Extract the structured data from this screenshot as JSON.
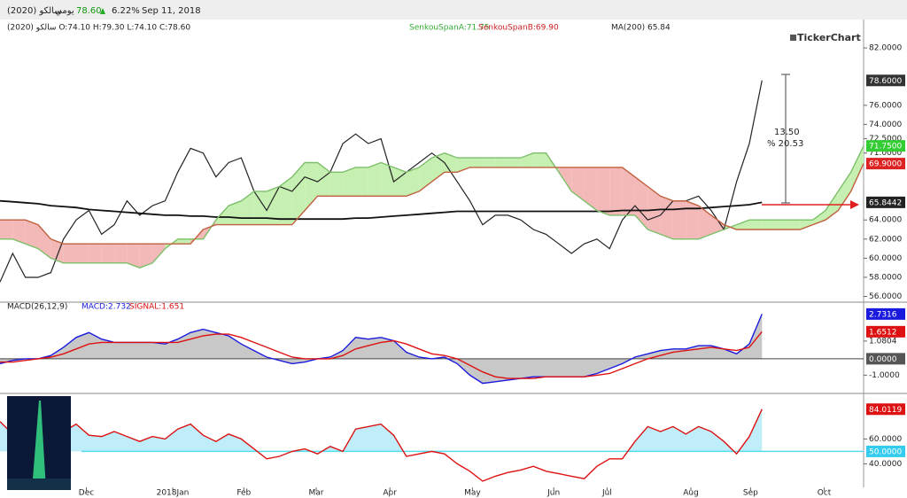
{
  "chart_data": [
    {
      "type": "line",
      "title": "سالكو (2020)",
      "interval": "يومي",
      "last": "78.60",
      "change": "6.22%",
      "date": "Sep 11, 2018",
      "ohlc": "سالكو (2020)  O:74.10 H:79.30 L:74.10 C:78.60",
      "legend": [
        "SenkouSpanA:71.75",
        "SenkouSpanB:69.90",
        "MA(200)  65.84"
      ],
      "logo": "TickerChart",
      "annotations": [
        "13.50",
        "% 20.53"
      ],
      "xlim": [
        0,
        68
      ],
      "xticks": [
        {
          "value": 6.8,
          "label": "Dec"
        },
        {
          "value": 13.6,
          "label": "2018Jan"
        },
        {
          "value": 19.2,
          "label": "Feb"
        },
        {
          "value": 24.9,
          "label": "Mar"
        },
        {
          "value": 30.7,
          "label": "Apr"
        },
        {
          "value": 37.2,
          "label": "May"
        },
        {
          "value": 43.6,
          "label": "Jun"
        },
        {
          "value": 47.8,
          "label": "Jul"
        },
        {
          "value": 54.4,
          "label": "Aug"
        },
        {
          "value": 59.1,
          "label": "Sep"
        },
        {
          "value": 64.9,
          "label": "Oct"
        }
      ],
      "ylim": [
        55.4,
        83.4
      ],
      "yticks": [
        {
          "value": 56,
          "label": "56.0000"
        },
        {
          "value": 58,
          "label": "58.0000"
        },
        {
          "value": 60,
          "label": "60.0000"
        },
        {
          "value": 62,
          "label": "62.0000"
        },
        {
          "value": 64,
          "label": "64.0000"
        },
        {
          "value": 71,
          "label": "71.0000"
        },
        {
          "value": 72.5,
          "label": "72.5000"
        },
        {
          "value": 74,
          "label": "74.0000"
        },
        {
          "value": 76,
          "label": "76.0000"
        },
        {
          "value": 82,
          "label": "82.0000"
        }
      ],
      "series": [
        {
          "name": "Close",
          "color": "#222222",
          "values": [
            57.5,
            60.5,
            58,
            58,
            58.5,
            62,
            64,
            65,
            62.5,
            63.5,
            66,
            64.5,
            65.5,
            66,
            69,
            71.5,
            71,
            68.5,
            70,
            70.5,
            67,
            65,
            67.5,
            67,
            68.5,
            68,
            69,
            72,
            73,
            72,
            72.5,
            68,
            69,
            70,
            71,
            70,
            68,
            66,
            63.5,
            64.5,
            64.5,
            64,
            63,
            62.5,
            61.5,
            60.5,
            61.5,
            62,
            61,
            64,
            65.5,
            64,
            64.5,
            66,
            66,
            66.5,
            65,
            63,
            68,
            72,
            78.6
          ]
        },
        {
          "name": "MA(200)",
          "color": "#111111",
          "values": [
            66.0,
            65.9,
            65.8,
            65.7,
            65.5,
            65.4,
            65.3,
            65.1,
            65.0,
            64.9,
            64.8,
            64.7,
            64.6,
            64.5,
            64.5,
            64.4,
            64.4,
            64.3,
            64.3,
            64.2,
            64.2,
            64.2,
            64.1,
            64.1,
            64.1,
            64.1,
            64.1,
            64.1,
            64.2,
            64.2,
            64.3,
            64.4,
            64.5,
            64.6,
            64.7,
            64.8,
            64.9,
            64.9,
            64.9,
            64.9,
            64.9,
            64.9,
            64.9,
            64.9,
            64.9,
            64.9,
            64.9,
            64.9,
            64.9,
            65.0,
            65.0,
            65.0,
            65.1,
            65.1,
            65.2,
            65.2,
            65.3,
            65.4,
            65.5,
            65.6,
            65.8442
          ]
        },
        {
          "name": "SenkouSpanA",
          "color": "#7cc06a",
          "values": [
            62,
            62,
            61.5,
            61,
            60,
            59.5,
            59.5,
            59.5,
            59.5,
            59.5,
            59.5,
            59,
            59.5,
            61,
            62,
            62,
            62,
            64,
            65.5,
            66,
            67,
            67,
            67.5,
            68.5,
            70,
            70,
            69,
            69,
            69.5,
            69.5,
            70,
            69.5,
            69,
            69.5,
            70.5,
            71,
            70.5,
            70.5,
            70.5,
            70.5,
            70.5,
            70.5,
            71,
            71,
            69,
            67,
            66,
            65,
            64.5,
            64.5,
            64.5,
            63,
            62.5,
            62,
            62,
            62,
            62.5,
            63,
            63.5,
            64,
            64,
            64,
            64,
            64,
            64,
            65,
            67,
            69,
            71.75
          ]
        },
        {
          "name": "SenkouSpanB",
          "color": "#c0603c",
          "values": [
            64,
            64,
            64,
            63.5,
            62,
            61.5,
            61.5,
            61.5,
            61.5,
            61.5,
            61.5,
            61.5,
            61.5,
            61.5,
            61.5,
            61.5,
            63,
            63.5,
            63.5,
            63.5,
            63.5,
            63.5,
            63.5,
            63.5,
            65,
            66.5,
            66.5,
            66.5,
            66.5,
            66.5,
            66.5,
            66.5,
            66.5,
            67,
            68,
            69,
            69,
            69.5,
            69.5,
            69.5,
            69.5,
            69.5,
            69.5,
            69.5,
            69.5,
            69.5,
            69.5,
            69.5,
            69.5,
            69.5,
            68.5,
            67.5,
            66.5,
            66,
            66,
            65.5,
            64.5,
            63.5,
            63,
            63,
            63,
            63,
            63,
            63,
            63.5,
            64,
            65,
            67,
            69.9
          ]
        }
      ],
      "cloud_colors": [
        "#c6efb2",
        "#f3b9b9"
      ],
      "tags": [
        {
          "value": 78.6,
          "label": "78.6000",
          "color": "#333333"
        },
        {
          "value": 71.75,
          "label": "71.7500",
          "color": "#33cc33"
        },
        {
          "value": 69.9,
          "label": "69.9000",
          "color": "#dd2222"
        },
        {
          "value": 65.8442,
          "label": "65.8442",
          "color": "#222222"
        }
      ]
    },
    {
      "type": "line",
      "title": "MACD(26,12,9)",
      "legend": [
        "MACD:2.732",
        "SIGNAL:1.651"
      ],
      "xlim": [
        0,
        68
      ],
      "ylim": [
        -1.9,
        3.4
      ],
      "yticks": [
        {
          "value": -1,
          "label": "-1.0000"
        },
        {
          "value": 1.0804,
          "label": "1.0804"
        }
      ],
      "series": [
        {
          "name": "MACD",
          "color": "#1a1adf",
          "values": [
            -0.3,
            -0.1,
            0.0,
            0.0,
            0.2,
            0.7,
            1.3,
            1.6,
            1.2,
            1.0,
            1.0,
            1.0,
            1.0,
            0.9,
            1.2,
            1.6,
            1.8,
            1.6,
            1.4,
            0.9,
            0.5,
            0.1,
            -0.1,
            -0.3,
            -0.2,
            0.0,
            0.1,
            0.5,
            1.3,
            1.2,
            1.3,
            1.1,
            0.4,
            0.1,
            0.0,
            0.1,
            -0.3,
            -1.0,
            -1.5,
            -1.4,
            -1.3,
            -1.2,
            -1.1,
            -1.1,
            -1.1,
            -1.1,
            -1.1,
            -0.9,
            -0.6,
            -0.3,
            0.1,
            0.3,
            0.5,
            0.6,
            0.6,
            0.8,
            0.8,
            0.6,
            0.3,
            0.9,
            2.732
          ]
        },
        {
          "name": "SIGNAL",
          "color": "#dd1111",
          "values": [
            -0.2,
            -0.2,
            -0.1,
            0.0,
            0.1,
            0.3,
            0.6,
            0.9,
            1.0,
            1.0,
            1.0,
            1.0,
            1.0,
            1.0,
            1.0,
            1.2,
            1.4,
            1.5,
            1.5,
            1.3,
            1.0,
            0.7,
            0.4,
            0.1,
            0.0,
            0.0,
            0.0,
            0.2,
            0.6,
            0.8,
            1.0,
            1.1,
            0.9,
            0.6,
            0.3,
            0.2,
            0.0,
            -0.4,
            -0.8,
            -1.1,
            -1.2,
            -1.2,
            -1.2,
            -1.1,
            -1.1,
            -1.1,
            -1.1,
            -1.0,
            -0.9,
            -0.6,
            -0.3,
            0.0,
            0.2,
            0.4,
            0.5,
            0.6,
            0.7,
            0.6,
            0.5,
            0.7,
            1.651
          ]
        }
      ],
      "fill_color": "#c8c8c8",
      "tags": [
        {
          "value": 2.7316,
          "label": "2.7316",
          "color": "#1a1adf"
        },
        {
          "value": 1.6512,
          "label": "1.6512",
          "color": "#dd1111"
        },
        {
          "value": 0,
          "label": "0.0000",
          "color": "#555555"
        }
      ]
    },
    {
      "type": "line",
      "xlim": [
        0,
        68
      ],
      "ylim": [
        21,
        96
      ],
      "yticks": [
        {
          "value": 40,
          "label": "40.0000"
        },
        {
          "value": 60,
          "label": "60.0000"
        }
      ],
      "baseline": 50,
      "series": [
        {
          "name": "RSI",
          "color": "#dd1111",
          "values": [
            74,
            64,
            60,
            62,
            60,
            66,
            72,
            63,
            62,
            66,
            62,
            58,
            62,
            60,
            68,
            72,
            63,
            58,
            64,
            60,
            52,
            44,
            46,
            50,
            52,
            48,
            54,
            50,
            68,
            70,
            72,
            63,
            46,
            48,
            50,
            48,
            40,
            34,
            26,
            30,
            33,
            35,
            38,
            34,
            32,
            30,
            28,
            38,
            44,
            44,
            58,
            70,
            66,
            70,
            64,
            70,
            66,
            58,
            48,
            62,
            84.0119
          ]
        }
      ],
      "fill_color": "#bfeefa",
      "baseline_color": "#55ddee",
      "tags": [
        {
          "value": 84.0119,
          "label": "84.0119",
          "color": "#dd1111"
        },
        {
          "value": 50,
          "label": "50.0000",
          "color": "#33ccee"
        }
      ]
    }
  ]
}
